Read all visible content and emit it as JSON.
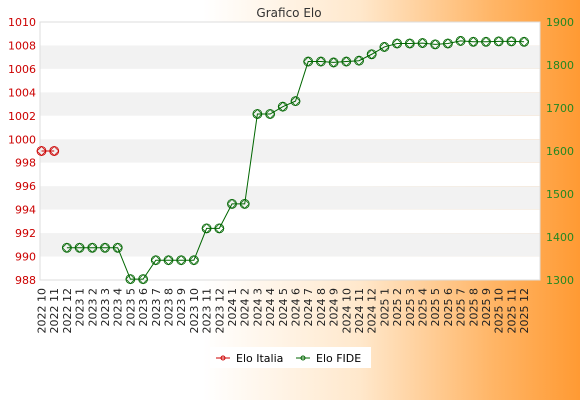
{
  "chart_data": {
    "type": "line",
    "title": "Grafico Elo",
    "categories": [
      "2022 10",
      "2022 11",
      "2022 12",
      "2023 1",
      "2023 2",
      "2023 3",
      "2023 4",
      "2023 5",
      "2023 6",
      "2023 7",
      "2023 8",
      "2023 9",
      "2023 10",
      "2023 11",
      "2023 12",
      "2024 1",
      "2024 2",
      "2024 3",
      "2024 4",
      "2024 5",
      "2024 6",
      "2024 7",
      "2024 8",
      "2024 9",
      "2024 10",
      "2024 11",
      "2024 12",
      "2025 1",
      "2025 2",
      "2025 3",
      "2025 4",
      "2025 5",
      "2025 6",
      "2025 7",
      "2025 8",
      "2025 9",
      "2025 10",
      "2025 11",
      "2025 12"
    ],
    "y_left": {
      "min": 988,
      "max": 1010,
      "step": 2,
      "color": "#cc0000"
    },
    "y_right": {
      "min": 1300,
      "max": 1900,
      "step": 100,
      "color": "#228822"
    },
    "grid": true,
    "legend_position": "bottom-center",
    "series": [
      {
        "name": "Elo Italia",
        "axis": "left",
        "color": "#cc0000",
        "values": [
          999,
          999,
          null,
          null,
          null,
          null,
          null,
          null,
          null,
          null,
          null,
          null,
          null,
          null,
          null,
          null,
          null,
          null,
          null,
          null,
          null,
          null,
          null,
          null,
          null,
          null,
          null,
          null,
          null,
          null,
          null,
          null,
          null,
          null,
          null,
          null,
          null,
          null,
          null
        ]
      },
      {
        "name": "Elo FIDE",
        "axis": "right",
        "color": "#006600",
        "values": [
          null,
          null,
          1375,
          1375,
          1375,
          1375,
          1375,
          1302,
          1302,
          1346,
          1346,
          1346,
          1346,
          1420,
          1420,
          1477,
          1477,
          1686,
          1686,
          1703,
          1716,
          1808,
          1808,
          1806,
          1808,
          1810,
          1825,
          1842,
          1850,
          1850,
          1851,
          1848,
          1850,
          1856,
          1854,
          1854,
          1855,
          1855,
          1854
        ]
      }
    ]
  }
}
